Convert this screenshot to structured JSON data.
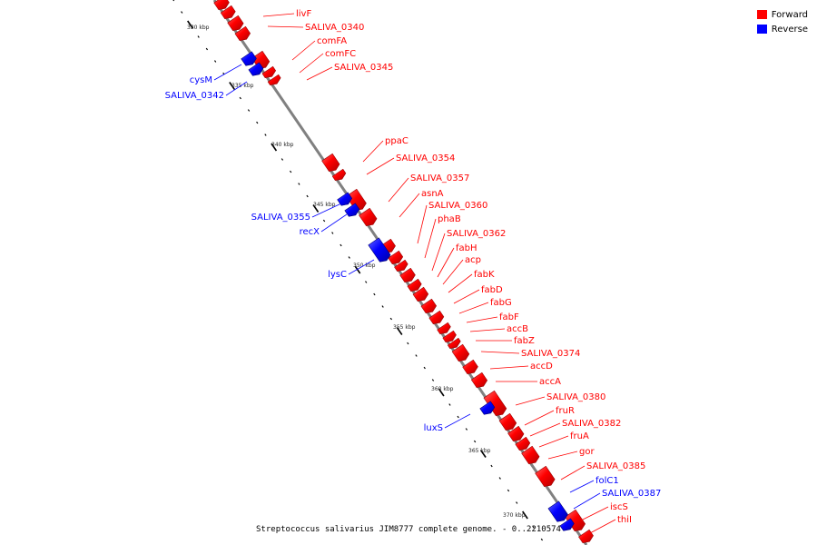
{
  "legend": {
    "forward_label": "Forward",
    "reverse_label": "Reverse",
    "forward_color": "#ff0000",
    "reverse_color": "#0000ff"
  },
  "caption": "Streptococcus salivarius JIM8777 complete genome. - 0..2210574",
  "ruler_labels": [
    "330 kbp",
    "335 kbp",
    "340 kbp",
    "345 kbp",
    "350 kbp",
    "355 kbp",
    "360 kbp",
    "365 kbp",
    "370 kbp"
  ],
  "genes": [
    {
      "label": "livF",
      "strand": "forward"
    },
    {
      "label": "SALIVA_0340",
      "strand": "forward"
    },
    {
      "label": "comFA",
      "strand": "forward"
    },
    {
      "label": "comFC",
      "strand": "forward"
    },
    {
      "label": "SALIVA_0345",
      "strand": "forward"
    },
    {
      "label": "cysM",
      "strand": "reverse"
    },
    {
      "label": "SALIVA_0342",
      "strand": "reverse"
    },
    {
      "label": "ppaC",
      "strand": "forward"
    },
    {
      "label": "SALIVA_0354",
      "strand": "forward"
    },
    {
      "label": "SALIVA_0357",
      "strand": "forward"
    },
    {
      "label": "asnA",
      "strand": "forward"
    },
    {
      "label": "SALIVA_0360",
      "strand": "forward"
    },
    {
      "label": "phaB",
      "strand": "forward"
    },
    {
      "label": "SALIVA_0362",
      "strand": "forward"
    },
    {
      "label": "fabH",
      "strand": "forward"
    },
    {
      "label": "acp",
      "strand": "forward"
    },
    {
      "label": "fabK",
      "strand": "forward"
    },
    {
      "label": "fabD",
      "strand": "forward"
    },
    {
      "label": "fabG",
      "strand": "forward"
    },
    {
      "label": "fabF",
      "strand": "forward"
    },
    {
      "label": "accB",
      "strand": "forward"
    },
    {
      "label": "fabZ",
      "strand": "forward"
    },
    {
      "label": "SALIVA_0374",
      "strand": "forward"
    },
    {
      "label": "accD",
      "strand": "forward"
    },
    {
      "label": "accA",
      "strand": "forward"
    },
    {
      "label": "SALIVA_0380",
      "strand": "forward"
    },
    {
      "label": "fruR",
      "strand": "forward"
    },
    {
      "label": "SALIVA_0382",
      "strand": "forward"
    },
    {
      "label": "fruA",
      "strand": "forward"
    },
    {
      "label": "gor",
      "strand": "forward"
    },
    {
      "label": "SALIVA_0385",
      "strand": "forward"
    },
    {
      "label": "folC1",
      "strand": "reverse"
    },
    {
      "label": "SALIVA_0387",
      "strand": "reverse"
    },
    {
      "label": "iscS",
      "strand": "forward"
    },
    {
      "label": "thiI",
      "strand": "forward"
    },
    {
      "label": "SALIVA_0355",
      "strand": "reverse"
    },
    {
      "label": "recX",
      "strand": "reverse"
    },
    {
      "label": "lysC",
      "strand": "reverse"
    },
    {
      "label": "luxS",
      "strand": "reverse"
    }
  ]
}
